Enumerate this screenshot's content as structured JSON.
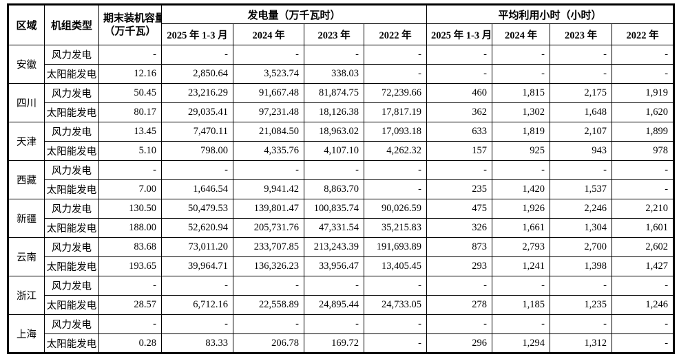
{
  "page": {
    "background": "#ffffff",
    "border_color": "#000000",
    "text_color": "#000000"
  },
  "table": {
    "headers": {
      "region": "区域",
      "unit_type": "机组类型",
      "capacity_line1": "期末装机容量",
      "capacity_line2": "（万千瓦）",
      "generation_group": "发电量（万千瓦时）",
      "hours_group": "平均利用小时（小时）",
      "periods": [
        "2025 年 1-3 月",
        "2024 年",
        "2023 年",
        "2022 年"
      ]
    },
    "regions": [
      {
        "name": "安徽",
        "rows": [
          {
            "type": "风力发电",
            "capacity": "-",
            "generation": [
              "-",
              "-",
              "-",
              "-"
            ],
            "hours": [
              "-",
              "-",
              "-",
              "-"
            ]
          },
          {
            "type": "太阳能发电",
            "capacity": "12.16",
            "generation": [
              "2,850.64",
              "3,523.74",
              "338.03",
              "-"
            ],
            "hours": [
              "-",
              "-",
              "-",
              "-"
            ]
          }
        ]
      },
      {
        "name": "四川",
        "rows": [
          {
            "type": "风力发电",
            "capacity": "50.45",
            "generation": [
              "23,216.29",
              "91,667.48",
              "81,874.75",
              "72,239.66"
            ],
            "hours": [
              "460",
              "1,815",
              "2,175",
              "1,919"
            ]
          },
          {
            "type": "太阳能发电",
            "capacity": "80.17",
            "generation": [
              "29,035.41",
              "97,231.48",
              "18,126.38",
              "17,817.19"
            ],
            "hours": [
              "362",
              "1,302",
              "1,648",
              "1,620"
            ]
          }
        ]
      },
      {
        "name": "天津",
        "rows": [
          {
            "type": "风力发电",
            "capacity": "13.45",
            "generation": [
              "7,470.11",
              "21,084.50",
              "18,963.02",
              "17,093.18"
            ],
            "hours": [
              "633",
              "1,819",
              "2,107",
              "1,899"
            ]
          },
          {
            "type": "太阳能发电",
            "capacity": "5.10",
            "generation": [
              "798.00",
              "4,335.76",
              "4,107.10",
              "4,262.32"
            ],
            "hours": [
              "157",
              "925",
              "943",
              "978"
            ]
          }
        ]
      },
      {
        "name": "西藏",
        "rows": [
          {
            "type": "风力发电",
            "capacity": "-",
            "generation": [
              "-",
              "-",
              "-",
              "-"
            ],
            "hours": [
              "-",
              "-",
              "-",
              "-"
            ]
          },
          {
            "type": "太阳能发电",
            "capacity": "7.00",
            "generation": [
              "1,646.54",
              "9,941.42",
              "8,863.70",
              "-"
            ],
            "hours": [
              "235",
              "1,420",
              "1,537",
              "-"
            ]
          }
        ]
      },
      {
        "name": "新疆",
        "rows": [
          {
            "type": "风力发电",
            "capacity": "130.50",
            "generation": [
              "50,479.53",
              "139,801.47",
              "100,835.74",
              "90,026.59"
            ],
            "hours": [
              "475",
              "1,926",
              "2,246",
              "2,210"
            ]
          },
          {
            "type": "太阳能发电",
            "capacity": "188.00",
            "generation": [
              "52,620.94",
              "205,731.76",
              "47,331.54",
              "35,215.83"
            ],
            "hours": [
              "326",
              "1,661",
              "1,304",
              "1,601"
            ]
          }
        ]
      },
      {
        "name": "云南",
        "rows": [
          {
            "type": "风力发电",
            "capacity": "83.68",
            "generation": [
              "73,011.20",
              "233,707.85",
              "213,243.39",
              "191,693.89"
            ],
            "hours": [
              "873",
              "2,793",
              "2,700",
              "2,602"
            ]
          },
          {
            "type": "太阳能发电",
            "capacity": "193.65",
            "generation": [
              "39,964.71",
              "136,326.23",
              "33,956.47",
              "13,405.45"
            ],
            "hours": [
              "293",
              "1,241",
              "1,398",
              "1,427"
            ]
          }
        ]
      },
      {
        "name": "浙江",
        "rows": [
          {
            "type": "风力发电",
            "capacity": "-",
            "generation": [
              "-",
              "-",
              "-",
              "-"
            ],
            "hours": [
              "-",
              "-",
              "-",
              "-"
            ]
          },
          {
            "type": "太阳能发电",
            "capacity": "28.57",
            "generation": [
              "6,712.16",
              "22,558.89",
              "24,895.44",
              "24,733.05"
            ],
            "hours": [
              "278",
              "1,185",
              "1,235",
              "1,246"
            ]
          }
        ]
      },
      {
        "name": "上海",
        "rows": [
          {
            "type": "风力发电",
            "capacity": "-",
            "generation": [
              "-",
              "-",
              "-",
              "-"
            ],
            "hours": [
              "-",
              "-",
              "-",
              "-"
            ]
          },
          {
            "type": "太阳能发电",
            "capacity": "0.28",
            "generation": [
              "83.33",
              "206.78",
              "169.72",
              "-"
            ],
            "hours": [
              "296",
              "1,294",
              "1,312",
              "-"
            ]
          }
        ]
      }
    ]
  }
}
